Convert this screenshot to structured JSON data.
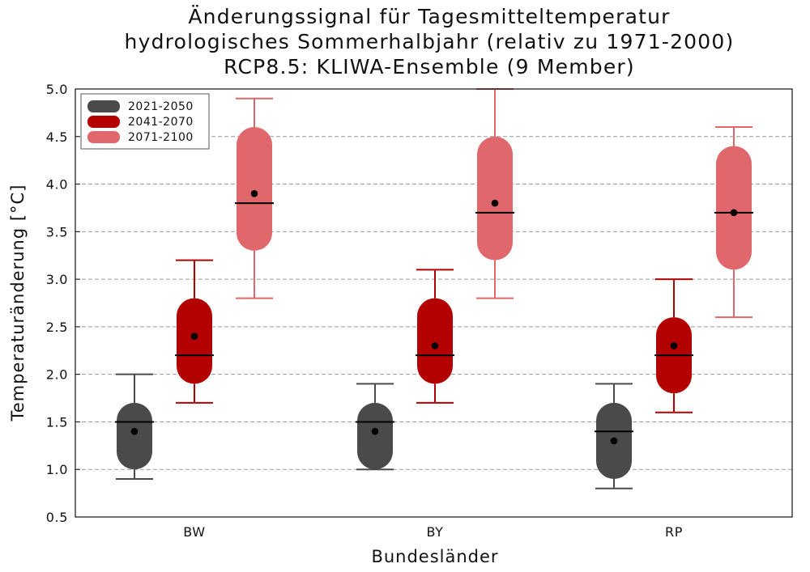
{
  "chart_data": {
    "type": "box",
    "title_lines": [
      "Änderungssignal für Tagesmitteltemperatur",
      "hydrologisches Sommerhalbjahr (relativ zu 1971-2000)",
      "RCP8.5: KLIWA-Ensemble (9 Member)"
    ],
    "xlabel": "Bundesländer",
    "ylabel": "Temperaturänderung [°C]",
    "ylim": [
      0.5,
      5.0
    ],
    "yticks": [
      "0.5",
      "1.0",
      "1.5",
      "2.0",
      "2.5",
      "3.0",
      "3.5",
      "4.0",
      "4.5",
      "5.0"
    ],
    "grid": "horizontal dashed",
    "legend_position": "top-left",
    "categories": [
      "BW",
      "BY",
      "RP"
    ],
    "series": [
      {
        "name": "2021-2050",
        "color": "#4a4a4a",
        "boxes": [
          {
            "min": 0.9,
            "q1": 1.0,
            "median": 1.5,
            "q3": 1.7,
            "max": 2.0,
            "mean": 1.4
          },
          {
            "min": 1.0,
            "q1": 1.0,
            "median": 1.5,
            "q3": 1.7,
            "max": 1.9,
            "mean": 1.4
          },
          {
            "min": 0.8,
            "q1": 0.9,
            "median": 1.4,
            "q3": 1.7,
            "max": 1.9,
            "mean": 1.3
          }
        ]
      },
      {
        "name": "2041-2070",
        "color": "#b30000",
        "boxes": [
          {
            "min": 1.7,
            "q1": 1.9,
            "median": 2.2,
            "q3": 2.8,
            "max": 3.2,
            "mean": 2.4
          },
          {
            "min": 1.7,
            "q1": 1.9,
            "median": 2.2,
            "q3": 2.8,
            "max": 3.1,
            "mean": 2.3
          },
          {
            "min": 1.6,
            "q1": 1.8,
            "median": 2.2,
            "q3": 2.6,
            "max": 3.0,
            "mean": 2.3
          }
        ]
      },
      {
        "name": "2071-2100",
        "color": "#e0676b",
        "boxes": [
          {
            "min": 2.8,
            "q1": 3.3,
            "median": 3.8,
            "q3": 4.6,
            "max": 4.9,
            "mean": 3.9
          },
          {
            "min": 2.8,
            "q1": 3.2,
            "median": 3.7,
            "q3": 4.5,
            "max": 5.0,
            "mean": 3.8
          },
          {
            "min": 2.6,
            "q1": 3.1,
            "median": 3.7,
            "q3": 4.4,
            "max": 4.6,
            "mean": 3.7
          }
        ]
      }
    ]
  }
}
